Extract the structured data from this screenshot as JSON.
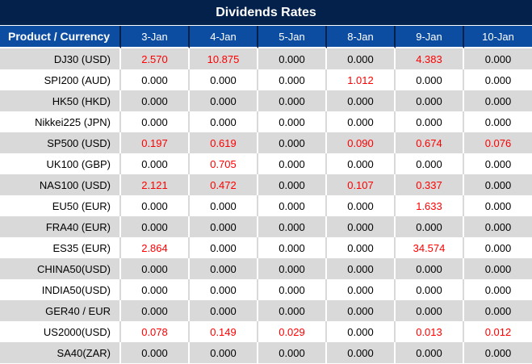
{
  "title": "Dividends Rates",
  "colors": {
    "title_bar_navy": "#03214a",
    "header_blue": "#0c4da2",
    "header_separator_navy": "#03214a",
    "row_gray": "#d9d9d9",
    "row_white": "#ffffff",
    "value_black": "#000000",
    "value_red": "#fe0000",
    "header_text": "#ffffff"
  },
  "table": {
    "product_header": "Product / Currency",
    "date_headers": [
      "3-Jan",
      "4-Jan",
      "5-Jan",
      "8-Jan",
      "9-Jan",
      "10-Jan"
    ],
    "zero_display": "0.000",
    "rows": [
      {
        "product": "DJ30 (USD)",
        "values": [
          "2.570",
          "10.875",
          "0.000",
          "0.000",
          "4.383",
          "0.000"
        ]
      },
      {
        "product": "SPI200 (AUD)",
        "values": [
          "0.000",
          "0.000",
          "0.000",
          "1.012",
          "0.000",
          "0.000"
        ]
      },
      {
        "product": "HK50 (HKD)",
        "values": [
          "0.000",
          "0.000",
          "0.000",
          "0.000",
          "0.000",
          "0.000"
        ]
      },
      {
        "product": "Nikkei225 (JPN)",
        "values": [
          "0.000",
          "0.000",
          "0.000",
          "0.000",
          "0.000",
          "0.000"
        ]
      },
      {
        "product": "SP500 (USD)",
        "values": [
          "0.197",
          "0.619",
          "0.000",
          "0.090",
          "0.674",
          "0.076"
        ]
      },
      {
        "product": "UK100 (GBP)",
        "values": [
          "0.000",
          "0.705",
          "0.000",
          "0.000",
          "0.000",
          "0.000"
        ]
      },
      {
        "product": "NAS100 (USD)",
        "values": [
          "2.121",
          "0.472",
          "0.000",
          "0.107",
          "0.337",
          "0.000"
        ]
      },
      {
        "product": "EU50 (EUR)",
        "values": [
          "0.000",
          "0.000",
          "0.000",
          "0.000",
          "1.633",
          "0.000"
        ]
      },
      {
        "product": "FRA40 (EUR)",
        "values": [
          "0.000",
          "0.000",
          "0.000",
          "0.000",
          "0.000",
          "0.000"
        ]
      },
      {
        "product": "ES35 (EUR)",
        "values": [
          "2.864",
          "0.000",
          "0.000",
          "0.000",
          "34.574",
          "0.000"
        ]
      },
      {
        "product": "CHINA50(USD)",
        "values": [
          "0.000",
          "0.000",
          "0.000",
          "0.000",
          "0.000",
          "0.000"
        ]
      },
      {
        "product": "INDIA50(USD)",
        "values": [
          "0.000",
          "0.000",
          "0.000",
          "0.000",
          "0.000",
          "0.000"
        ]
      },
      {
        "product": "GER40 / EUR",
        "values": [
          "0.000",
          "0.000",
          "0.000",
          "0.000",
          "0.000",
          "0.000"
        ]
      },
      {
        "product": "US2000(USD)",
        "values": [
          "0.078",
          "0.149",
          "0.029",
          "0.000",
          "0.013",
          "0.012"
        ]
      },
      {
        "product": "SA40(ZAR)",
        "values": [
          "0.000",
          "0.000",
          "0.000",
          "0.000",
          "0.000",
          "0.000"
        ]
      }
    ]
  }
}
